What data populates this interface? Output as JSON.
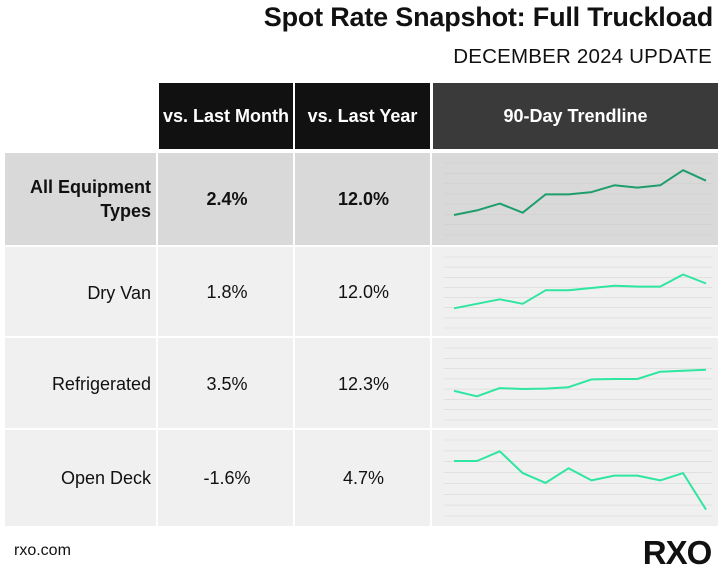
{
  "header": {
    "title": "Spot Rate Snapshot: Full Truckload",
    "subtitle": "DECEMBER 2024 UPDATE"
  },
  "table": {
    "columns": [
      "vs. Last Month",
      "vs. Last Year",
      "90-Day Trendline"
    ]
  },
  "chart_data": {
    "type": "table",
    "title": "Spot Rate Snapshot: Full Truckload",
    "columns": [
      "vs. Last Month",
      "vs. Last Year",
      "90-Day Trendline"
    ],
    "rows": [
      {
        "label": "All Equipment Types",
        "vs_last_month": "2.4%",
        "vs_last_year": "12.0%",
        "trend_color": "#1e9e6c",
        "trend": [
          10,
          20,
          35,
          15,
          55,
          55,
          60,
          75,
          70,
          75,
          108,
          85
        ]
      },
      {
        "label": "Dry Van",
        "vs_last_month": "1.8%",
        "vs_last_year": "12.0%",
        "trend_color": "#2ee6a0",
        "trend": [
          10,
          20,
          30,
          20,
          50,
          50,
          55,
          60,
          58,
          58,
          85,
          65
        ]
      },
      {
        "label": "Refrigerated",
        "vs_last_month": "3.5%",
        "vs_last_year": "12.3%",
        "trend_color": "#2ee6a0",
        "trend": [
          30,
          18,
          36,
          34,
          35,
          38,
          55,
          56,
          56,
          72,
          74,
          76
        ]
      },
      {
        "label": "Open Deck",
        "vs_last_month": "-1.6%",
        "vs_last_year": "4.7%",
        "trend_color": "#2ee6a0",
        "trend": [
          80,
          80,
          100,
          55,
          35,
          65,
          40,
          50,
          50,
          40,
          55,
          -20
        ]
      }
    ],
    "trend_range": [
      -25,
      115
    ]
  },
  "footer": {
    "url": "rxo.com",
    "logo": "RXO"
  },
  "colors": {
    "header_bg": "#111111",
    "trend_header_bg": "#3a3a3a",
    "highlight_row": "#d9d9d9",
    "row_bg": "#f0f0f0",
    "gridline": "#cccccc"
  }
}
